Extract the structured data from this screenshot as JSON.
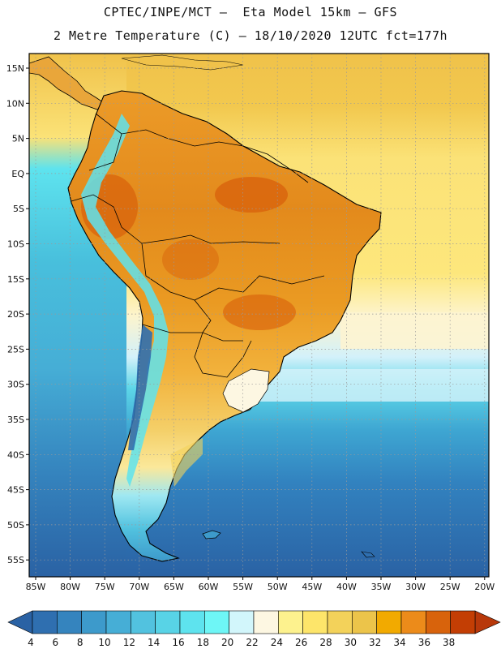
{
  "header": {
    "line1": "CPTEC/INPE/MCT –  Eta Model 15km – GFS",
    "line2": "2 Metre Temperature (C) – 18/10/2020 12UTC fct=177h"
  },
  "axes": {
    "lat_labels": [
      "15N",
      "10N",
      "5N",
      "EQ",
      "5S",
      "10S",
      "15S",
      "20S",
      "25S",
      "30S",
      "35S",
      "40S",
      "45S",
      "50S",
      "55S"
    ],
    "lon_labels": [
      "85W",
      "80W",
      "75W",
      "70W",
      "65W",
      "60W",
      "55W",
      "50W",
      "45W",
      "40W",
      "35W",
      "30W",
      "25W",
      "20W"
    ]
  },
  "colorbar": {
    "labels": [
      "4",
      "6",
      "8",
      "10",
      "12",
      "14",
      "16",
      "18",
      "20",
      "22",
      "24",
      "26",
      "28",
      "30",
      "32",
      "34",
      "36",
      "38"
    ],
    "colors": [
      "#2f6fb0",
      "#3584be",
      "#3d9acb",
      "#46aed6",
      "#52c2df",
      "#58d3e6",
      "#5ee3ee",
      "#6ef6f6",
      "#d2f6fb",
      "#fdf7e2",
      "#fdf28e",
      "#fde56a",
      "#f3d25a",
      "#ecc44a",
      "#f2aa00",
      "#ec8b1a",
      "#d8630c",
      "#c33e04"
    ],
    "under_color": "#2a62a4",
    "over_color": "#b8380a"
  }
}
